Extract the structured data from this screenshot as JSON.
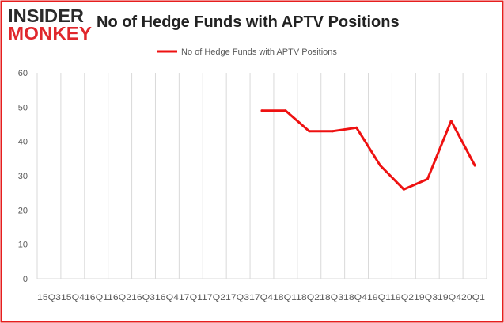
{
  "logo": {
    "line1": "INSIDER",
    "line2": "MONKEY",
    "colors": {
      "dark": "#2b2b2b",
      "red": "#e0272c"
    }
  },
  "header": {
    "title": "No of Hedge Funds with APTV Positions"
  },
  "colors": {
    "series": "#ee1111",
    "border": "#e61e1e",
    "gridline": "#d9d9d9",
    "axis_text": "#595959",
    "title_text": "#222222"
  },
  "chart_data": {
    "type": "line",
    "title": "No of Hedge Funds with APTV Positions",
    "xlabel": "",
    "ylabel": "",
    "categories": [
      "Q3 2015",
      "Q4 2015",
      "Q1 2016",
      "Q2 2016",
      "Q3 2016",
      "Q4 2016",
      "Q1 2017",
      "Q2 2017",
      "Q3 2017",
      "Q4 2017",
      "Q1 2018",
      "Q2 2018",
      "Q3 2018",
      "Q4 2018",
      "Q1 2019",
      "Q2 2019",
      "Q3 2019",
      "Q4 2019",
      "Q1 2020"
    ],
    "x_tick_text": "15Q315Q416Q116Q216Q316Q417Q117Q217Q317Q418Q118Q218Q318Q419Q119Q219Q319Q420Q1",
    "series": [
      {
        "name": "No of Hedge Funds with APTV Positions",
        "values": [
          null,
          null,
          null,
          null,
          null,
          null,
          null,
          null,
          null,
          49,
          49,
          43,
          43,
          44,
          33,
          26,
          29,
          46,
          33
        ]
      }
    ],
    "ylim": [
      0,
      60
    ],
    "yticks": [
      0,
      10,
      20,
      30,
      40,
      50,
      60
    ],
    "grid": {
      "vertical": true,
      "horizontal": false
    },
    "legend": {
      "position": "top-center"
    }
  }
}
